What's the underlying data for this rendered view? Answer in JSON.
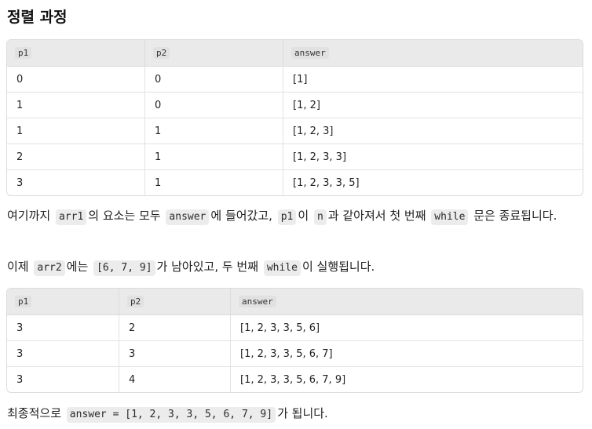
{
  "heading": "정렬 과정",
  "table1": {
    "headers": [
      "p1",
      "p2",
      "answer"
    ],
    "rows": [
      [
        "0",
        "0",
        "[1]"
      ],
      [
        "1",
        "0",
        "[1, 2]"
      ],
      [
        "1",
        "1",
        "[1, 2, 3]"
      ],
      [
        "2",
        "1",
        "[1, 2, 3, 3]"
      ],
      [
        "3",
        "1",
        "[1, 2, 3, 3, 5]"
      ]
    ]
  },
  "para1": {
    "t1": "여기까지",
    "c1": "arr1",
    "t2": "의 요소는 모두",
    "c2": "answer",
    "t3": "에 들어갔고,",
    "c3": "p1",
    "t4": "이",
    "c4": "n",
    "t5": "과 같아져서 첫 번째",
    "c5": "while",
    "t6": "문은 종료됩니다."
  },
  "para2": {
    "t1": "이제",
    "c1": "arr2",
    "t2": "에는",
    "c2": "[6, 7, 9]",
    "t3": "가 남아있고, 두 번째",
    "c3": "while",
    "t4": "이 실행됩니다."
  },
  "table2": {
    "headers": [
      "p1",
      "p2",
      "answer"
    ],
    "rows": [
      [
        "3",
        "2",
        "[1, 2, 3, 3, 5, 6]"
      ],
      [
        "3",
        "3",
        "[1, 2, 3, 3, 5, 6, 7]"
      ],
      [
        "3",
        "4",
        "[1, 2, 3, 3, 5, 6, 7, 9]"
      ]
    ]
  },
  "para3": {
    "t1": "최종적으로",
    "c1": "answer = [1, 2, 3, 3, 5, 6, 7, 9]",
    "t2": "가 됩니다."
  }
}
